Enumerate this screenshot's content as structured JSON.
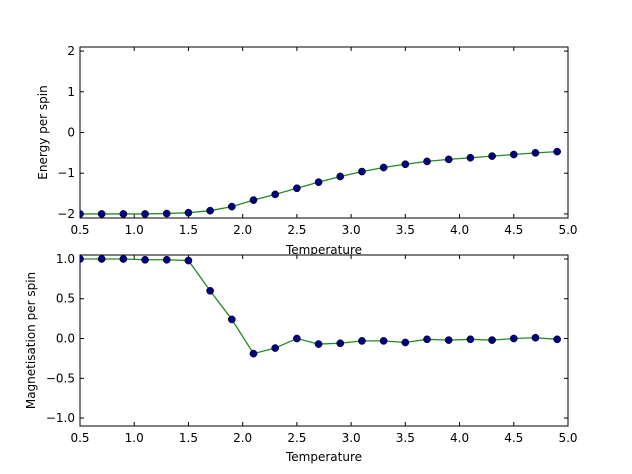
{
  "colors": {
    "line": "#228b22",
    "marker": "#000080"
  },
  "chart_data": [
    {
      "type": "line",
      "xlabel": "Temperature",
      "ylabel": "Energy per spin",
      "xlim": [
        0.5,
        5.0
      ],
      "ylim": [
        -2.1,
        2.1
      ],
      "xticks": [
        0.5,
        1.0,
        1.5,
        2.0,
        2.5,
        3.0,
        3.5,
        4.0,
        4.5,
        5.0
      ],
      "xtick_labels": [
        "0.5",
        "1.0",
        "1.5",
        "2.0",
        "2.5",
        "3.0",
        "3.5",
        "4.0",
        "4.5",
        "5.0"
      ],
      "yticks": [
        -2,
        -1,
        0,
        1,
        2
      ],
      "ytick_labels": [
        "−2",
        "−1",
        "0",
        "1",
        "2"
      ],
      "grid": false,
      "series": [
        {
          "x": [
            0.5,
            0.7,
            0.9,
            1.1,
            1.3,
            1.5,
            1.7,
            1.9,
            2.1,
            2.3,
            2.5,
            2.7,
            2.9,
            3.1,
            3.3,
            3.5,
            3.7,
            3.9,
            4.1,
            4.3,
            4.5,
            4.7,
            4.9
          ],
          "y": [
            -2.0,
            -2.0,
            -2.0,
            -2.0,
            -1.99,
            -1.97,
            -1.92,
            -1.82,
            -1.66,
            -1.52,
            -1.37,
            -1.22,
            -1.08,
            -0.96,
            -0.86,
            -0.78,
            -0.71,
            -0.66,
            -0.62,
            -0.58,
            -0.54,
            -0.5,
            -0.47
          ]
        }
      ]
    },
    {
      "type": "line",
      "xlabel": "Temperature",
      "ylabel": "Magnetisation per spin",
      "xlim": [
        0.5,
        5.0
      ],
      "ylim": [
        -1.1,
        1.05
      ],
      "xticks": [
        0.5,
        1.0,
        1.5,
        2.0,
        2.5,
        3.0,
        3.5,
        4.0,
        4.5,
        5.0
      ],
      "xtick_labels": [
        "0.5",
        "1.0",
        "1.5",
        "2.0",
        "2.5",
        "3.0",
        "3.5",
        "4.0",
        "4.5",
        "5.0"
      ],
      "yticks": [
        -1.0,
        -0.5,
        0.0,
        0.5,
        1.0
      ],
      "ytick_labels": [
        "−1.0",
        "−0.5",
        "0.0",
        "0.5",
        "1.0"
      ],
      "grid": false,
      "series": [
        {
          "x": [
            0.5,
            0.7,
            0.9,
            1.1,
            1.3,
            1.5,
            1.7,
            1.9,
            2.1,
            2.3,
            2.5,
            2.7,
            2.9,
            3.1,
            3.3,
            3.5,
            3.7,
            3.9,
            4.1,
            4.3,
            4.5,
            4.7,
            4.9
          ],
          "y": [
            1.0,
            1.0,
            1.0,
            0.99,
            0.99,
            0.98,
            0.6,
            0.24,
            -0.19,
            -0.12,
            0.0,
            -0.07,
            -0.06,
            -0.03,
            -0.03,
            -0.05,
            -0.01,
            -0.02,
            -0.01,
            -0.02,
            0.0,
            0.01,
            -0.01
          ]
        }
      ]
    }
  ]
}
